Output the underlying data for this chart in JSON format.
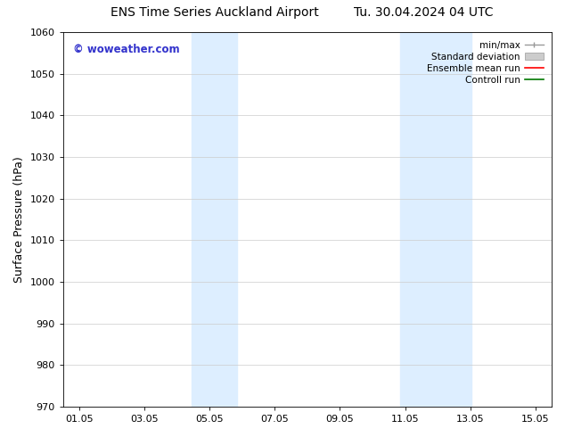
{
  "title_left": "ENS Time Series Auckland Airport",
  "title_right": "Tu. 30.04.2024 04 UTC",
  "ylabel": "Surface Pressure (hPa)",
  "ylim": [
    970,
    1060
  ],
  "yticks": [
    970,
    980,
    990,
    1000,
    1010,
    1020,
    1030,
    1040,
    1050,
    1060
  ],
  "xlim": [
    0.5,
    15.5
  ],
  "xtick_labels": [
    "01.05",
    "03.05",
    "05.05",
    "07.05",
    "09.05",
    "11.05",
    "13.05",
    "15.05"
  ],
  "xtick_positions": [
    1,
    3,
    5,
    7,
    9,
    11,
    13,
    15
  ],
  "blue_bands": [
    {
      "x_start": 4.45,
      "x_end": 5.85
    },
    {
      "x_start": 10.85,
      "x_end": 13.05
    }
  ],
  "band_color": "#ddeeff",
  "watermark": "© woweather.com",
  "watermark_color": "#3333cc",
  "bg_color": "#ffffff",
  "title_fontsize": 10,
  "tick_fontsize": 8,
  "ylabel_fontsize": 9,
  "legend_fontsize": 7.5
}
